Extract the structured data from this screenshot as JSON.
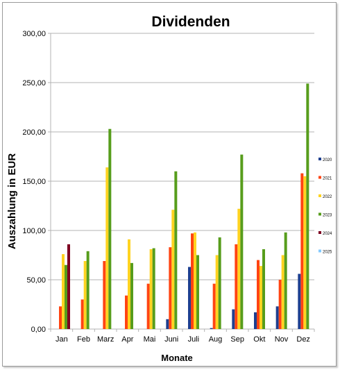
{
  "chart_data": {
    "type": "bar",
    "title": "Dividenden",
    "xlabel": "Monate",
    "ylabel": "Auszahlung in EUR",
    "ylim": [
      0,
      300
    ],
    "yticks": [
      "0,00",
      "50,00",
      "100,00",
      "150,00",
      "200,00",
      "250,00",
      "300,00"
    ],
    "categories": [
      "Jan",
      "Feb",
      "Marz",
      "Apr",
      "Mai",
      "Juni",
      "Juli",
      "Aug",
      "Sep",
      "Okt",
      "Nov",
      "Dez"
    ],
    "grid": true,
    "legend_position": "right",
    "series": [
      {
        "name": "2020",
        "color": "#1f3f8f",
        "values": [
          0,
          0,
          0,
          0,
          0,
          10,
          63,
          1,
          20,
          17,
          23,
          56
        ]
      },
      {
        "name": "2021",
        "color": "#ff4412",
        "values": [
          23,
          30,
          69,
          34,
          46,
          83,
          97,
          46,
          86,
          70,
          50,
          158
        ]
      },
      {
        "name": "2022",
        "color": "#ffd320",
        "values": [
          76,
          69,
          164,
          91,
          81,
          121,
          98,
          75,
          122,
          64,
          75,
          155
        ]
      },
      {
        "name": "2023",
        "color": "#579d1c",
        "values": [
          65,
          79,
          203,
          67,
          82,
          160,
          75,
          93,
          177,
          81,
          98,
          249
        ]
      },
      {
        "name": "2024",
        "color": "#7e0021",
        "values": [
          86,
          0,
          0,
          0,
          0,
          0,
          0,
          0,
          0,
          0,
          0,
          0
        ]
      },
      {
        "name": "2025",
        "color": "#83caff",
        "values": [
          0,
          0,
          0,
          0,
          0,
          0,
          0,
          0,
          0,
          0,
          0,
          0
        ]
      }
    ]
  }
}
